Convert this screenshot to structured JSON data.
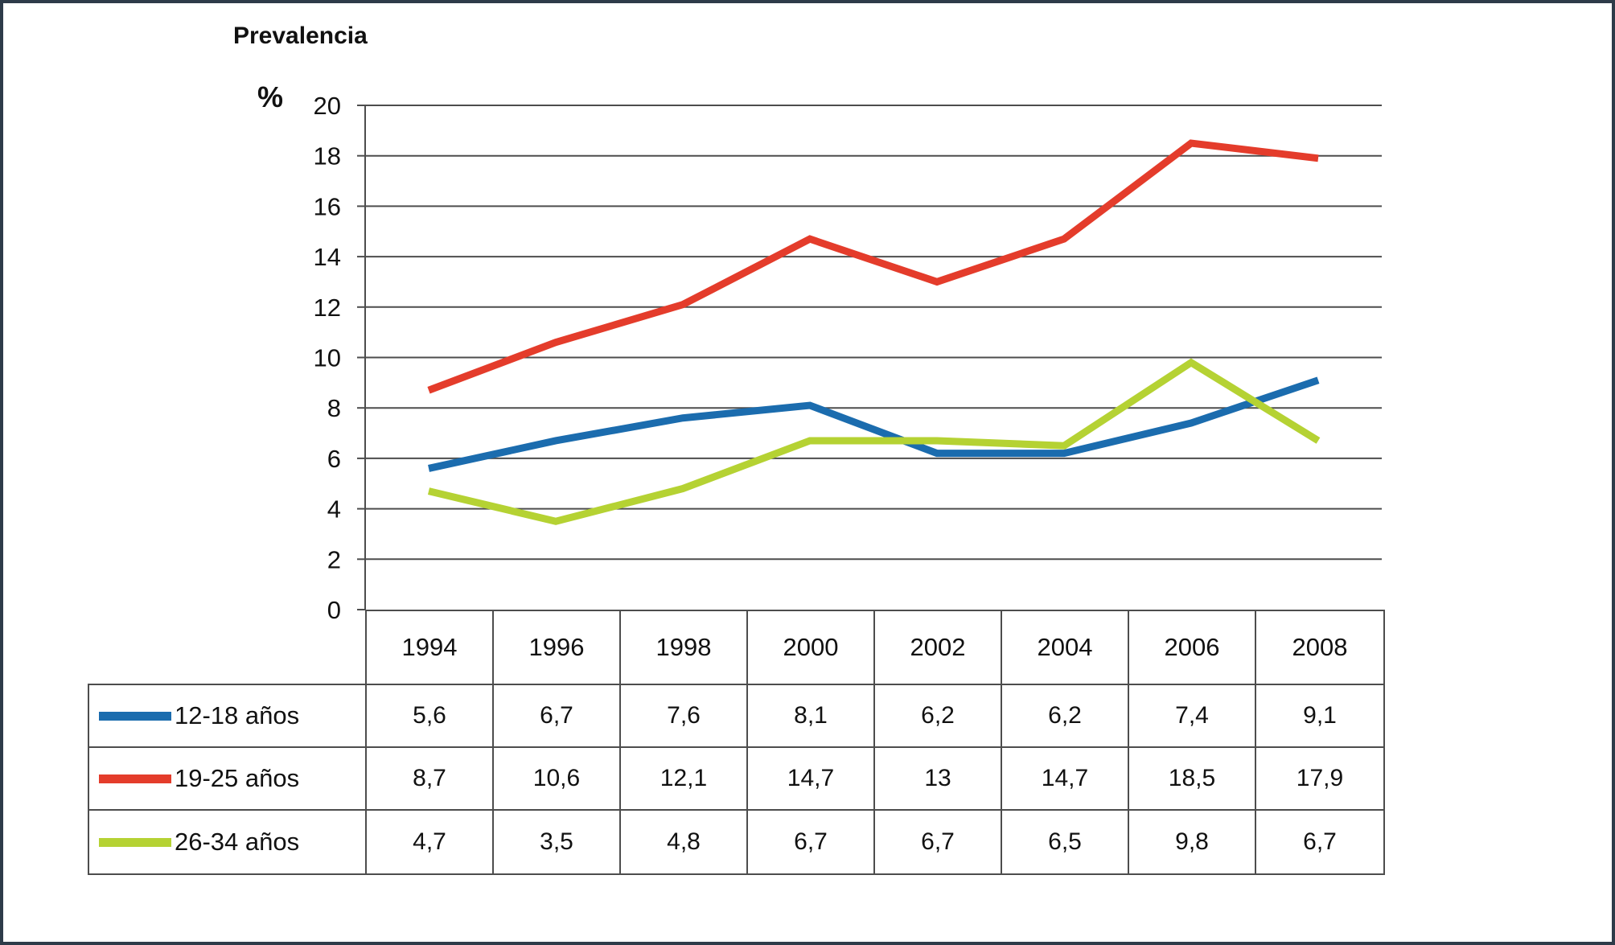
{
  "title": "Prevalencia",
  "y_axis": {
    "label": "%",
    "ticks": [
      20,
      18,
      16,
      14,
      12,
      10,
      8,
      6,
      4,
      2,
      0
    ]
  },
  "chart_data": {
    "type": "line",
    "title": "Prevalencia",
    "ylabel": "%",
    "ylim": [
      0,
      20
    ],
    "ystep": 2,
    "grid": true,
    "legend_position": "table-left",
    "categories": [
      "1994",
      "1996",
      "1998",
      "2000",
      "2002",
      "2004",
      "2006",
      "2008"
    ],
    "series": [
      {
        "name": "12-18 años",
        "color": "#1B6CAE",
        "values": [
          5.6,
          6.7,
          7.6,
          8.1,
          6.2,
          6.2,
          7.4,
          9.1
        ],
        "labels": [
          "5,6",
          "6,7",
          "7,6",
          "8,1",
          "6,2",
          "6,2",
          "7,4",
          "9,1"
        ]
      },
      {
        "name": "19-25 años",
        "color": "#E43C2B",
        "values": [
          8.7,
          10.6,
          12.1,
          14.7,
          13,
          14.7,
          18.5,
          17.9
        ],
        "labels": [
          "8,7",
          "10,6",
          "12,1",
          "14,7",
          "13",
          "14,7",
          "18,5",
          "17,9"
        ]
      },
      {
        "name": "26-34 años",
        "color": "#B5D233",
        "values": [
          4.7,
          3.5,
          4.8,
          6.7,
          6.7,
          6.5,
          9.8,
          6.7
        ],
        "labels": [
          "4,7",
          "3,5",
          "4,8",
          "6,7",
          "6,7",
          "6,5",
          "9,8",
          "6,7"
        ]
      }
    ]
  },
  "colors": {
    "grid": "#4d4d4d",
    "border": "#2e3b49",
    "text": "#111111"
  }
}
